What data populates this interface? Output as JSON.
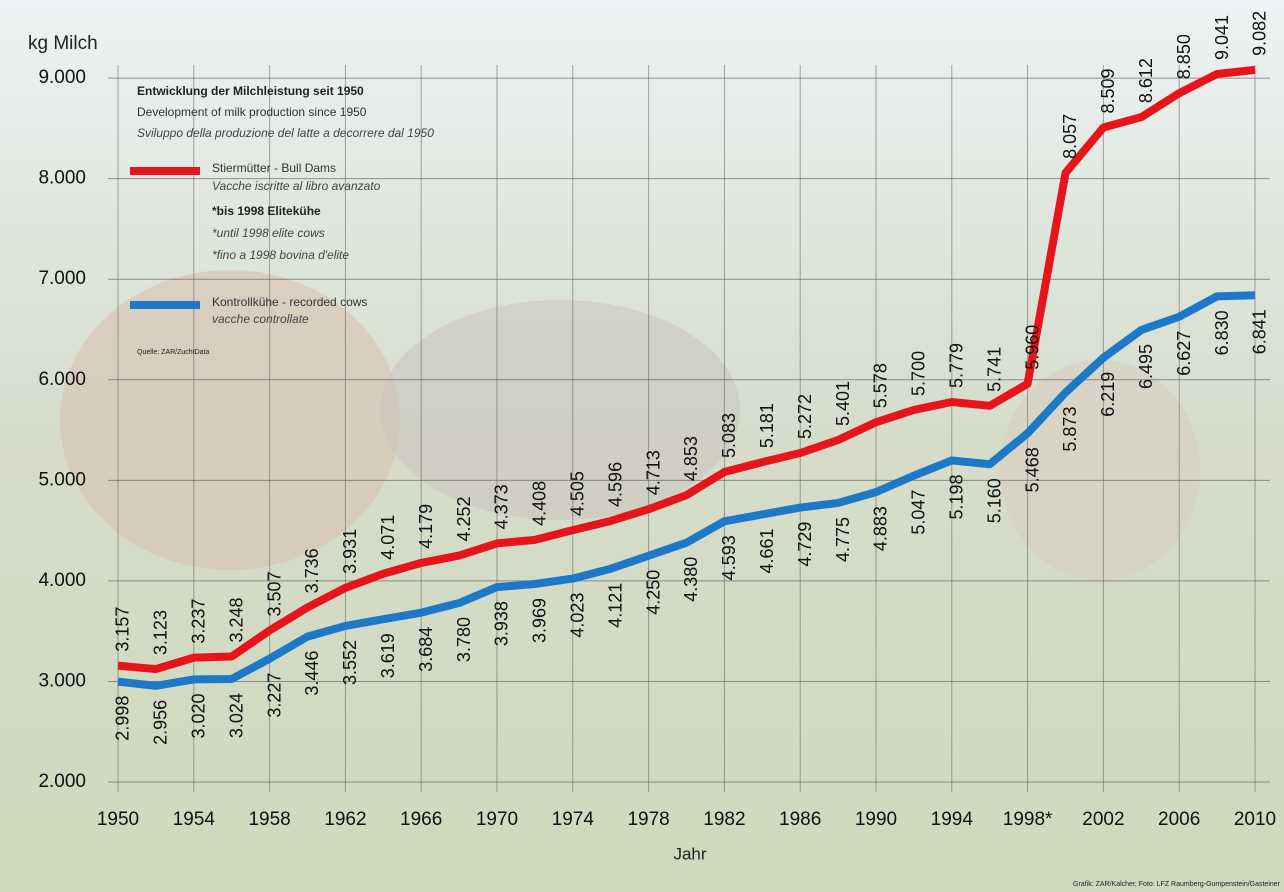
{
  "chart_data": {
    "type": "line",
    "title": "Entwicklung der Milchleistung seit 1950",
    "subtitles": [
      "Development of milk production since 1950",
      "Sviluppo della produzione del latte a decorrere dal 1950"
    ],
    "y_label": "kg Milch",
    "x_label": "Jahr",
    "source": "Quelle: ZAR/ZuchtData",
    "credit": "Grafik: ZAR/Kalcher, Foto: LFZ Raumberg-Gumpenstein/Gasteiner",
    "x": [
      1950,
      1952,
      1954,
      1956,
      1958,
      1960,
      1962,
      1964,
      1966,
      1968,
      1970,
      1972,
      1974,
      1976,
      1978,
      1980,
      1982,
      1984,
      1986,
      1988,
      1990,
      1992,
      1994,
      1996,
      1998,
      2000,
      2002,
      2004,
      2006,
      2008,
      2010
    ],
    "xlim": [
      1950,
      2010
    ],
    "xticks": [
      1950,
      1954,
      1958,
      1962,
      1966,
      1970,
      1974,
      1978,
      1982,
      1986,
      1990,
      1994,
      {
        "value": 1998,
        "label": "1998*"
      },
      2002,
      2006,
      2010
    ],
    "ylim": [
      2000,
      9200
    ],
    "yticks": [
      {
        "value": 2000,
        "label": "2.000"
      },
      {
        "value": 3000,
        "label": "3.000"
      },
      {
        "value": 4000,
        "label": "4.000"
      },
      {
        "value": 5000,
        "label": "5.000"
      },
      {
        "value": 6000,
        "label": "6.000"
      },
      {
        "value": 7000,
        "label": "7.000"
      },
      {
        "value": 8000,
        "label": "8.000"
      },
      {
        "value": 9000,
        "label": "9.000"
      }
    ],
    "grid": true,
    "series": [
      {
        "name": "Stiermütter - Bull Dams",
        "color": "#e8141b",
        "notes": [
          "Vacche iscritte al libro avanzato",
          "*bis 1998 Elitekühe",
          "*until 1998 elite cows",
          "*fino a 1998 bovina d'elite"
        ],
        "values": [
          3157,
          3123,
          3237,
          3248,
          3507,
          3736,
          3931,
          4071,
          4179,
          4252,
          4373,
          4408,
          4505,
          4596,
          4713,
          4853,
          5083,
          5181,
          5272,
          5401,
          5578,
          5700,
          5779,
          5741,
          5960,
          8057,
          8509,
          8612,
          8850,
          9041,
          9082
        ],
        "value_labels": [
          "3.157",
          "3.123",
          "3.237",
          "3.248",
          "3.507",
          "3.736",
          "3.931",
          "4.071",
          "4.179",
          "4.252",
          "4.373",
          "4.408",
          "4.505",
          "4.596",
          "4.713",
          "4.853",
          "5.083",
          "5.181",
          "5.272",
          "5.401",
          "5.578",
          "5.700",
          "5.779",
          "5.741",
          "5.960",
          "8.057",
          "8.509",
          "8.612",
          "8.850",
          "9.041",
          "9.082"
        ]
      },
      {
        "name": "Kontrollkühe - recorded cows",
        "color": "#1e78c8",
        "notes": [
          "vacche controllate"
        ],
        "values": [
          2998,
          2956,
          3020,
          3024,
          3227,
          3446,
          3552,
          3619,
          3684,
          3780,
          3938,
          3969,
          4023,
          4121,
          4250,
          4380,
          4593,
          4661,
          4729,
          4775,
          4883,
          5047,
          5198,
          5160,
          5468,
          5873,
          6219,
          6495,
          6627,
          6830,
          6841
        ],
        "value_labels": [
          "2.998",
          "2.956",
          "3.020",
          "3.024",
          "3.227",
          "3.446",
          "3.552",
          "3.619",
          "3.684",
          "3.780",
          "3.938",
          "3.969",
          "4.023",
          "4.121",
          "4.250",
          "4.380",
          "4.593",
          "4.661",
          "4.729",
          "4.775",
          "4.883",
          "5.047",
          "5.198",
          "5.160",
          "5.468",
          "5.873",
          "6.219",
          "6.495",
          "6.627",
          "6.830",
          "6.841"
        ]
      }
    ]
  }
}
